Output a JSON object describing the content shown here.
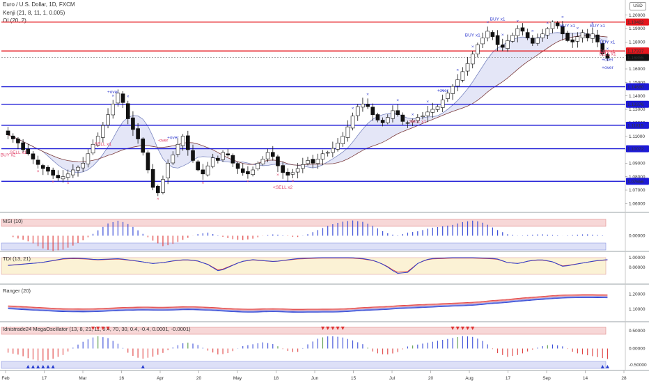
{
  "header": {
    "title": "Euro / U.S. Dollar, 1D, FXCM",
    "indicator1": "Kenji (21, 8, 11, 1, 0.005)",
    "indicator2": "OI (20, 2)",
    "currency": "USD"
  },
  "colors": {
    "up": "#ffffff",
    "down": "#111111",
    "wick": "#111111",
    "resistance": "#e5161d",
    "support": "#1d1ad6",
    "blue_bar": "#3b4ed8",
    "red_bar": "#e04040",
    "green_bar": "#5a9a4a",
    "band_blue": "#2a3fd0",
    "band_red": "#e03a3a",
    "buy_text": "#3a44d0",
    "sell_text": "#e0456b"
  },
  "chart_data": [
    {
      "type": "candlestick",
      "pane": "price",
      "title": "Euro / U.S. Dollar, 1D, FXCM",
      "ylim": [
        1.055,
        1.205
      ],
      "y_ticks": [
        "1.20000",
        "1.19000",
        "1.18000",
        "1.17000",
        "1.16000",
        "1.15000",
        "1.14000",
        "1.13000",
        "1.12000",
        "1.11000",
        "1.10000",
        "1.09000",
        "1.08000",
        "1.07000",
        "1.06000"
      ],
      "x_ticks": [
        "Feb",
        "17",
        "Mar",
        "16",
        "Apr",
        "20",
        "May",
        "18",
        "Jun",
        "15",
        "Jul",
        "20",
        "Aug",
        "17",
        "Sep",
        "14",
        "28"
      ],
      "close_path": [
        1.111,
        1.108,
        1.105,
        1.1,
        1.097,
        1.093,
        1.089,
        1.086,
        1.084,
        1.081,
        1.079,
        1.08,
        1.082,
        1.085,
        1.087,
        1.09,
        1.097,
        1.104,
        1.11,
        1.118,
        1.126,
        1.134,
        1.142,
        1.135,
        1.123,
        1.115,
        1.108,
        1.098,
        1.085,
        1.072,
        1.068,
        1.078,
        1.09,
        1.096,
        1.104,
        1.11,
        1.1,
        1.092,
        1.085,
        1.082,
        1.088,
        1.094,
        1.092,
        1.098,
        1.096,
        1.09,
        1.086,
        1.083,
        1.082,
        1.085,
        1.09,
        1.093,
        1.098,
        1.095,
        1.088,
        1.083,
        1.081,
        1.083,
        1.086,
        1.089,
        1.092,
        1.09,
        1.093,
        1.097,
        1.098,
        1.101,
        1.105,
        1.11,
        1.117,
        1.125,
        1.132,
        1.134,
        1.132,
        1.126,
        1.122,
        1.12,
        1.124,
        1.129,
        1.126,
        1.121,
        1.12,
        1.122,
        1.124,
        1.125,
        1.128,
        1.13,
        1.132,
        1.137,
        1.142,
        1.147,
        1.152,
        1.158,
        1.164,
        1.171,
        1.178,
        1.183,
        1.188,
        1.184,
        1.178,
        1.176,
        1.181,
        1.185,
        1.19,
        1.188,
        1.183,
        1.179,
        1.183,
        1.186,
        1.19,
        1.195,
        1.192,
        1.186,
        1.181,
        1.18,
        1.184,
        1.187,
        1.183,
        1.186,
        1.18,
        1.171,
        1.168
      ],
      "horizontal_levels": [
        {
          "value": 1.19482,
          "label": "1.19482",
          "kind": "resistance"
        },
        {
          "value": 1.17337,
          "label": "1.17337",
          "kind": "resistance"
        },
        {
          "value": 1.16855,
          "label": "1.16855",
          "kind": "last"
        },
        {
          "value": 1.1468,
          "label": "1.14680",
          "kind": "support"
        },
        {
          "value": 1.13376,
          "label": "1.13376",
          "kind": "support"
        },
        {
          "value": 1.11815,
          "label": "1.11815",
          "kind": "support"
        },
        {
          "value": 1.10072,
          "label": "1.10072",
          "kind": "support"
        },
        {
          "value": 1.07656,
          "label": "1.07656",
          "kind": "support"
        }
      ],
      "signals": [
        {
          "text": "BUY x2",
          "color": "sell",
          "i": 0,
          "offset": -0.016
        },
        {
          "text": "SELL x1",
          "color": "sell",
          "i": 2,
          "offset": -0.008
        },
        {
          "text": "SELL x1",
          "color": "sell",
          "i": 19,
          "offset": -0.015
        },
        {
          "text": "+over",
          "color": "buy",
          "i": 21,
          "offset": 0.008
        },
        {
          "text": "+over",
          "color": "buy",
          "i": 33,
          "offset": 0.012
        },
        {
          "text": "-over",
          "color": "sell",
          "i": 31,
          "offset": 0.028
        },
        {
          "text": "<SELL x2",
          "color": "sell",
          "i": 55,
          "offset": -0.012
        },
        {
          "text": "SELL x1",
          "color": "sell",
          "i": 82,
          "offset": -0.004
        },
        {
          "text": "+over",
          "color": "buy",
          "i": 87,
          "offset": 0.006
        },
        {
          "text": "BUY x1",
          "color": "buy",
          "i": 93,
          "offset": 0.013
        },
        {
          "text": "BUY x1",
          "color": "buy",
          "i": 98,
          "offset": 0.018
        },
        {
          "text": "BUY x1",
          "color": "buy",
          "i": 112,
          "offset": 0.01
        },
        {
          "text": "BUY x1",
          "color": "buy",
          "i": 118,
          "offset": 0.011
        },
        {
          "text": "+over",
          "color": "buy",
          "i": 140,
          "offset": -0.008
        },
        {
          "text": "+over",
          "color": "buy",
          "i": 151,
          "offset": -0.002
        },
        {
          "text": "BUY x1",
          "color": "buy",
          "i": 154,
          "offset": 0.011
        },
        {
          "text": "SELL x1",
          "color": "sell",
          "i": 165,
          "offset": 0.002
        },
        {
          "text": "BUY x1",
          "color": "sell",
          "i": 178,
          "offset": 0.004
        }
      ]
    },
    {
      "type": "bar",
      "pane": "msi",
      "title": "MSI (10)",
      "y_ticks": [
        "0.00000"
      ],
      "envelope": [
        [
          0,
          -0.2,
          -0.4,
          -0.8,
          -1.0,
          -0.9,
          -0.6,
          -0.2,
          0.3,
          0.8,
          1.0,
          0.7,
          0.2,
          -0.3,
          -0.7,
          -0.5,
          -0.2,
          0.1,
          0.2,
          0.0,
          -0.2,
          -0.3,
          -0.2,
          0.0,
          0.1,
          0.0,
          -0.1,
          0.1,
          0.4,
          0.7,
          0.9,
          1.0,
          0.9,
          0.6,
          0.2,
          0.0,
          0.2,
          0.3,
          0.5,
          0.6,
          0.7,
          0.9,
          1.0,
          0.8,
          0.4,
          0.1,
          0.0,
          0.05,
          0.1,
          0.05,
          0.0,
          0.05,
          0.1,
          0.05,
          0.0
        ]
      ]
    },
    {
      "type": "line",
      "pane": "tdi",
      "title": "TDI (13, 21)",
      "y_ticks": [
        "1.00000",
        "0.00000"
      ],
      "points": [
        [
          0.2,
          0.3,
          0.4,
          0.5,
          0.7,
          0.9,
          0.95,
          0.9,
          0.8,
          0.85,
          0.9,
          0.75,
          0.6,
          0.4,
          0.5,
          0.7,
          0.8,
          0.7,
          0.3,
          -0.4,
          0.1,
          0.6,
          0.8,
          0.7,
          0.6,
          0.75,
          0.9,
          0.95,
          1.0,
          1.0,
          1.0,
          1.0,
          0.9,
          0.7,
          0.2,
          -0.6,
          -0.5,
          0.5,
          0.9,
          0.95,
          1.0,
          1.0,
          1.0,
          0.95,
          0.9,
          0.5,
          0.4,
          0.7,
          0.8,
          0.6,
          0.1,
          0.3,
          0.5,
          0.7,
          0.8
        ]
      ]
    },
    {
      "type": "line",
      "pane": "ranger",
      "title": "Ranger (20)",
      "y_ticks": [
        "1.20000",
        "1.10000"
      ],
      "series": [
        {
          "name": "upper"
        },
        {
          "name": "middle"
        },
        {
          "name": "lower"
        }
      ]
    },
    {
      "type": "bar",
      "pane": "mega",
      "title": "Idnistrade24 MegaOscillator (13, 8, 21, 11, 0.4, 70, 30, 0.4, -0.4, 0.0001, -0.0001)",
      "y_ticks": [
        "0.50000",
        "0.00000",
        "-0.50000"
      ],
      "envelope": [
        [
          -0.2,
          -0.3,
          -0.5,
          -0.6,
          -0.5,
          -0.3,
          0.1,
          0.4,
          0.6,
          0.5,
          0.2,
          -0.3,
          -0.5,
          -0.4,
          -0.2,
          0.1,
          0.3,
          0.2,
          -0.1,
          -0.3,
          -0.2,
          0.1,
          0.2,
          0.3,
          0.2,
          -0.1,
          -0.2,
          0.2,
          0.5,
          0.6,
          0.55,
          0.4,
          0.2,
          -0.2,
          -0.3,
          -0.2,
          0.1,
          0.2,
          0.3,
          0.4,
          0.5,
          0.6,
          0.55,
          0.3,
          -0.2,
          -0.4,
          -0.3,
          -0.1,
          0.1,
          0.2,
          0.1,
          -0.2,
          -0.3,
          -0.4,
          -0.5
        ]
      ]
    }
  ]
}
